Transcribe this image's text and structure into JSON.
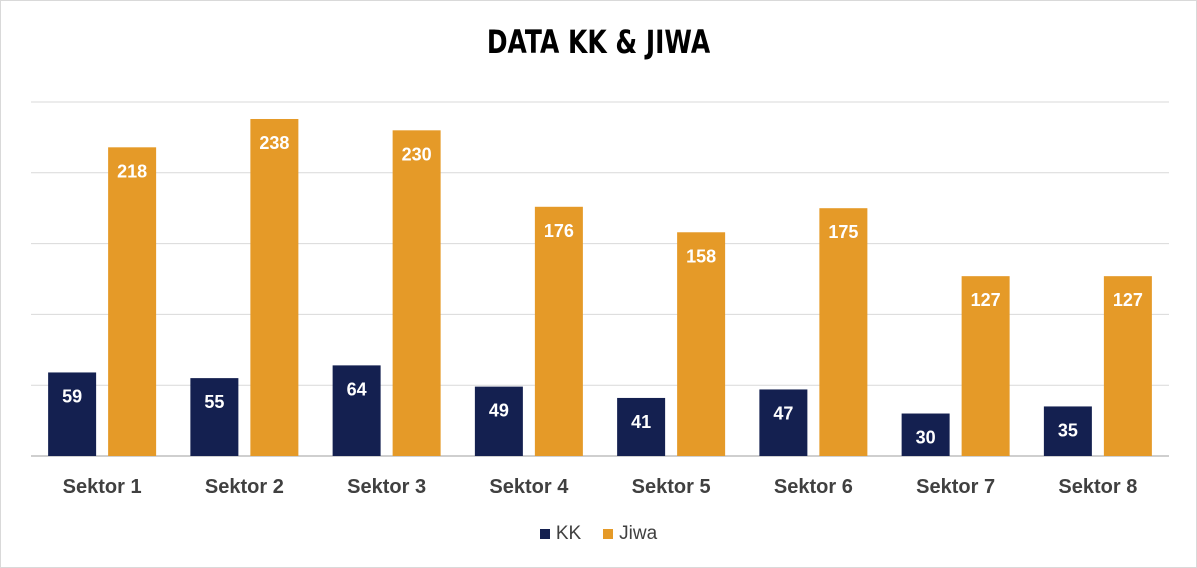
{
  "chart_data": {
    "type": "bar",
    "title": "DATA KK & JIWA",
    "categories": [
      "Sektor 1",
      "Sektor 2",
      "Sektor 3",
      "Sektor 4",
      "Sektor 5",
      "Sektor 6",
      "Sektor 7",
      "Sektor 8"
    ],
    "series": [
      {
        "name": "KK",
        "color": "#142050",
        "values": [
          59,
          55,
          64,
          49,
          41,
          47,
          30,
          35
        ]
      },
      {
        "name": "Jiwa",
        "color": "#E59A28",
        "values": [
          218,
          238,
          230,
          176,
          158,
          175,
          127,
          127
        ]
      }
    ],
    "ylim": [
      0,
      250
    ],
    "y_gridlines": [
      0,
      50,
      100,
      150,
      200,
      250
    ],
    "grid": true,
    "y_tick_labels_visible": false,
    "data_labels": true,
    "legend": "bottom"
  }
}
